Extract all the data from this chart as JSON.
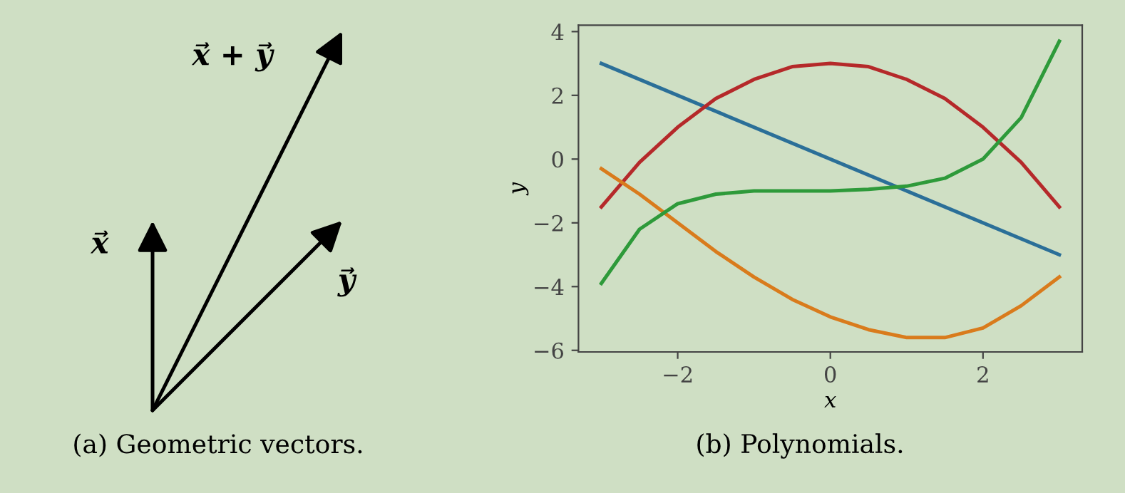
{
  "chart_data": [
    {
      "type": "other",
      "annotations": [
        "x⃗ + y⃗",
        "x⃗",
        "y⃗",
        "(a) Geometric vectors."
      ]
    },
    {
      "type": "line",
      "xlabel": "x",
      "ylabel": "y",
      "annotations": [
        "(b) Polynomials."
      ],
      "xlim": [
        -3.3,
        3.3
      ],
      "ylim": [
        -6.05,
        4.2
      ],
      "xticks": [
        {
          "value": -2,
          "label": "−2"
        },
        0,
        2
      ],
      "yticks": [
        {
          "value": -6,
          "label": "−6"
        },
        {
          "value": -4,
          "label": "−4"
        },
        {
          "value": -2,
          "label": "−2"
        },
        0,
        2,
        4
      ],
      "grid": false,
      "legend": false,
      "marker": "none",
      "line_style": "solid",
      "series": [
        {
          "color": "#2b6f98",
          "x": [
            -3,
            3
          ],
          "values": [
            3,
            -3
          ]
        },
        {
          "color": "#b5292a",
          "x": [
            -3,
            -2.5,
            -2,
            -1.5,
            -1,
            -0.5,
            0,
            0.5,
            1,
            1.5,
            2,
            2.5,
            3
          ],
          "values": [
            -1.5,
            -0.1,
            1,
            1.9,
            2.5,
            2.9,
            3,
            2.9,
            2.5,
            1.9,
            1,
            -0.1,
            -1.5
          ]
        },
        {
          "color": "#d97b1c",
          "x": [
            -3,
            -2.5,
            -2,
            -1.5,
            -1,
            -0.5,
            0,
            0.5,
            1,
            1.5,
            2,
            2.5,
            3
          ],
          "values": [
            -0.3,
            -1.1,
            -2.0,
            -2.9,
            -3.7,
            -4.4,
            -4.95,
            -5.35,
            -5.6,
            -5.6,
            -5.3,
            -4.6,
            -3.7
          ]
        },
        {
          "color": "#2e9a3a",
          "x": [
            -3,
            -2.5,
            -2,
            -1.5,
            -1,
            -0.5,
            0,
            0.5,
            1,
            1.5,
            2,
            2.5,
            3
          ],
          "values": [
            -3.9,
            -2.2,
            -1.4,
            -1.1,
            -1.0,
            -1.0,
            -1.0,
            -0.95,
            -0.85,
            -0.6,
            0.0,
            1.3,
            3.7
          ]
        }
      ]
    }
  ]
}
